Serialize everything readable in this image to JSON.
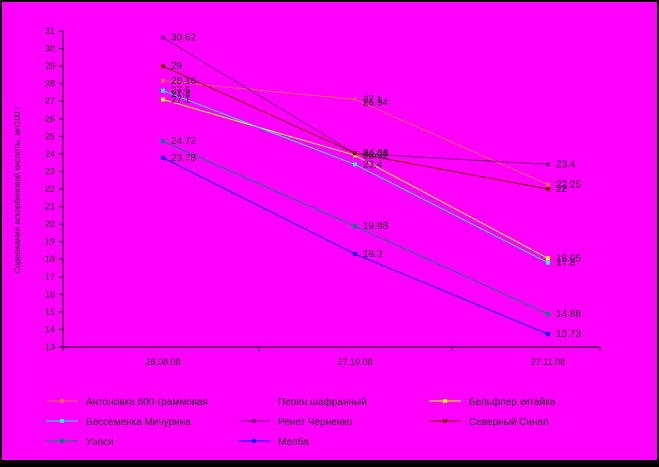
{
  "chart_data": {
    "type": "line",
    "title": "",
    "xlabel": "",
    "ylabel": "Содержание аскорбиновой кислоты, мг/100 г",
    "categories": [
      "28.08.08",
      "27.10.08",
      "27.11.08"
    ],
    "ylim": [
      13,
      31
    ],
    "ytick_labels": [
      "13",
      "14",
      "15",
      "16",
      "17",
      "18",
      "19",
      "20",
      "21",
      "22",
      "23",
      "24",
      "25",
      "26",
      "27",
      "28",
      "29",
      "30",
      "31"
    ],
    "grid": false,
    "legend_placement": "bottom",
    "background_color": "#ff00ff",
    "series": [
      {
        "name": "Антоновка 600-граммовая",
        "color": "#ff6060",
        "values": [
          28.16,
          27.1,
          22.25
        ],
        "labels": [
          "28.16",
          "27.1",
          "22.25"
        ]
      },
      {
        "name": "Пепин шафранный",
        "color": "#ff00ff",
        "values": [
          27.4,
          26.94,
          22
        ],
        "labels": [
          "27.4",
          "26.94",
          "22"
        ]
      },
      {
        "name": "Бельфлер китайка",
        "color": "#ffff00",
        "values": [
          27.1,
          23.92,
          18.05
        ],
        "labels": [
          "27.1",
          "23.92",
          "18.05"
        ]
      },
      {
        "name": "Бессеменка Мичурина",
        "color": "#00ffff",
        "values": [
          27.6,
          23.4,
          17.8
        ],
        "labels": [
          "27.6",
          "23.4",
          "17.8"
        ]
      },
      {
        "name": "Ренет Черненко",
        "color": "#800080",
        "values": [
          30.62,
          24.03,
          23.4
        ],
        "labels": [
          "30.62",
          "24.03",
          "23.4"
        ]
      },
      {
        "name": "Северный Синап",
        "color": "#800000",
        "values": [
          29,
          24.04,
          22
        ],
        "labels": [
          "29",
          "24.04",
          "22"
        ]
      },
      {
        "name": "Уэлси",
        "color": "#008080",
        "values": [
          24.72,
          19.88,
          14.88
        ],
        "labels": [
          "24.72",
          "19.88",
          "14.88"
        ]
      },
      {
        "name": "Мелба",
        "color": "#0000ff",
        "values": [
          23.78,
          18.3,
          13.73
        ],
        "labels": [
          "23.78",
          "18.3",
          "13.73"
        ]
      }
    ]
  }
}
